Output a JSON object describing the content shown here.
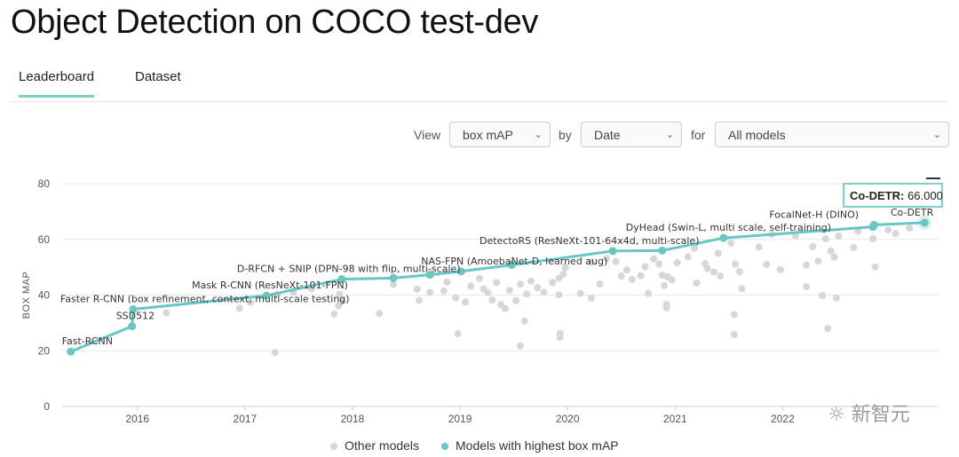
{
  "page": {
    "title": "Object Detection on COCO test-dev"
  },
  "tabs": [
    {
      "label": "Leaderboard",
      "active": true
    },
    {
      "label": "Dataset",
      "active": false
    }
  ],
  "controls": {
    "view_label": "View",
    "metric_value": "box mAP",
    "by_label": "by",
    "by_value": "Date",
    "for_label": "for",
    "models_value": "All models"
  },
  "tooltip": {
    "model": "Co-DETR:",
    "value": "66.000"
  },
  "legend": {
    "other_models": "Other models",
    "best_models": "Models with highest box mAP"
  },
  "watermark": "新智元",
  "colors": {
    "accent": "#66c7c3",
    "other_points": "#d7d7d7",
    "grid": "#e8e8e8"
  },
  "chart_data": {
    "type": "scatter",
    "ylabel": "BOX MAP",
    "xlabel": "",
    "ylim": [
      0,
      80
    ],
    "yticks": [
      0,
      20,
      40,
      60,
      80
    ],
    "xlim": [
      2015.3,
      2023.45
    ],
    "xticks": [
      "2016",
      "2017",
      "2018",
      "2019",
      "2020",
      "2021",
      "2022"
    ],
    "series": [
      {
        "name": "Models with highest box mAP",
        "points": [
          {
            "x": 2015.38,
            "y": 19.7,
            "label": "Fast-RCNN"
          },
          {
            "x": 2015.95,
            "y": 28.8,
            "label": "SSD512"
          },
          {
            "x": 2015.96,
            "y": 34.9,
            "label": "Faster R-CNN (box refinement, context, multi-scale testing)"
          },
          {
            "x": 2017.2,
            "y": 39.8,
            "label": "Mask R-CNN (ResNeXt-101-FPN)"
          },
          {
            "x": 2017.9,
            "y": 45.7,
            "label": "D-RFCN + SNIP (DPN-98 with flip, multi-scale)"
          },
          {
            "x": 2018.38,
            "y": 46.1,
            "label": ""
          },
          {
            "x": 2018.72,
            "y": 47.3,
            "label": ""
          },
          {
            "x": 2019.01,
            "y": 48.5,
            "label": "NAS-FPN (AmoebaNet-D, learned aug)"
          },
          {
            "x": 2019.48,
            "y": 50.8,
            "label": ""
          },
          {
            "x": 2020.42,
            "y": 55.8,
            "label": "DetectoRS (ResNeXt-101-64x4d, multi-scale)"
          },
          {
            "x": 2020.88,
            "y": 56.0,
            "label": ""
          },
          {
            "x": 2021.45,
            "y": 60.5,
            "label": "DyHead (Swin-L, multi scale, self-training)"
          },
          {
            "x": 2022.84,
            "y": 64.5,
            "label": ""
          },
          {
            "x": 2022.85,
            "y": 65.2,
            "label": "FocalNet-H (DINO)"
          },
          {
            "x": 2023.32,
            "y": 66.0,
            "label": "Co-DETR"
          }
        ]
      },
      {
        "name": "Other models",
        "points": [
          {
            "x": 2016.27,
            "y": 33.6
          },
          {
            "x": 2016.95,
            "y": 35.2
          },
          {
            "x": 2017.05,
            "y": 37.4
          },
          {
            "x": 2017.28,
            "y": 19.4
          },
          {
            "x": 2017.3,
            "y": 40.2
          },
          {
            "x": 2017.45,
            "y": 41.0
          },
          {
            "x": 2017.62,
            "y": 42.3
          },
          {
            "x": 2017.83,
            "y": 33.2
          },
          {
            "x": 2017.87,
            "y": 36.1
          },
          {
            "x": 2017.9,
            "y": 37.8
          },
          {
            "x": 2017.88,
            "y": 40.3
          },
          {
            "x": 2018.25,
            "y": 33.4
          },
          {
            "x": 2018.38,
            "y": 43.8
          },
          {
            "x": 2018.6,
            "y": 42.1
          },
          {
            "x": 2018.62,
            "y": 38.1
          },
          {
            "x": 2018.72,
            "y": 40.9
          },
          {
            "x": 2018.85,
            "y": 41.5
          },
          {
            "x": 2018.88,
            "y": 44.7
          },
          {
            "x": 2018.96,
            "y": 39.0
          },
          {
            "x": 2018.98,
            "y": 26.1
          },
          {
            "x": 2019.05,
            "y": 37.5
          },
          {
            "x": 2019.1,
            "y": 43.2
          },
          {
            "x": 2019.18,
            "y": 46.0
          },
          {
            "x": 2019.22,
            "y": 42.1
          },
          {
            "x": 2019.26,
            "y": 40.8
          },
          {
            "x": 2019.3,
            "y": 38.2
          },
          {
            "x": 2019.34,
            "y": 44.5
          },
          {
            "x": 2019.38,
            "y": 36.6
          },
          {
            "x": 2019.42,
            "y": 35.1
          },
          {
            "x": 2019.46,
            "y": 41.7
          },
          {
            "x": 2019.52,
            "y": 38.0
          },
          {
            "x": 2019.56,
            "y": 43.9
          },
          {
            "x": 2019.56,
            "y": 21.7
          },
          {
            "x": 2019.6,
            "y": 30.7
          },
          {
            "x": 2019.62,
            "y": 40.4
          },
          {
            "x": 2019.66,
            "y": 45.0
          },
          {
            "x": 2019.72,
            "y": 42.6
          },
          {
            "x": 2019.78,
            "y": 41.0
          },
          {
            "x": 2019.86,
            "y": 44.5
          },
          {
            "x": 2019.92,
            "y": 46.1
          },
          {
            "x": 2019.92,
            "y": 40.1
          },
          {
            "x": 2019.93,
            "y": 26.2
          },
          {
            "x": 2019.93,
            "y": 24.8
          },
          {
            "x": 2019.96,
            "y": 47.5
          },
          {
            "x": 2019.98,
            "y": 49.9
          },
          {
            "x": 2020.12,
            "y": 40.6
          },
          {
            "x": 2020.22,
            "y": 38.9
          },
          {
            "x": 2020.22,
            "y": 51.8
          },
          {
            "x": 2020.3,
            "y": 44.0
          },
          {
            "x": 2020.36,
            "y": 53.1
          },
          {
            "x": 2020.45,
            "y": 52.0
          },
          {
            "x": 2020.5,
            "y": 46.8
          },
          {
            "x": 2020.55,
            "y": 49.0
          },
          {
            "x": 2020.6,
            "y": 45.6
          },
          {
            "x": 2020.68,
            "y": 47.0
          },
          {
            "x": 2020.72,
            "y": 50.2
          },
          {
            "x": 2020.75,
            "y": 40.6
          },
          {
            "x": 2020.8,
            "y": 53.0
          },
          {
            "x": 2020.85,
            "y": 51.2
          },
          {
            "x": 2020.88,
            "y": 47.1
          },
          {
            "x": 2020.9,
            "y": 43.4
          },
          {
            "x": 2020.92,
            "y": 36.6
          },
          {
            "x": 2020.92,
            "y": 35.4
          },
          {
            "x": 2020.93,
            "y": 46.5
          },
          {
            "x": 2020.97,
            "y": 45.5
          },
          {
            "x": 2021.02,
            "y": 51.6
          },
          {
            "x": 2021.12,
            "y": 53.8
          },
          {
            "x": 2021.18,
            "y": 56.8
          },
          {
            "x": 2021.2,
            "y": 44.3
          },
          {
            "x": 2021.28,
            "y": 51.3
          },
          {
            "x": 2021.3,
            "y": 49.6
          },
          {
            "x": 2021.36,
            "y": 48.3
          },
          {
            "x": 2021.4,
            "y": 55.0
          },
          {
            "x": 2021.42,
            "y": 46.8
          },
          {
            "x": 2021.52,
            "y": 58.6
          },
          {
            "x": 2021.55,
            "y": 33.0
          },
          {
            "x": 2021.55,
            "y": 25.8
          },
          {
            "x": 2021.56,
            "y": 51.1
          },
          {
            "x": 2021.6,
            "y": 48.4
          },
          {
            "x": 2021.62,
            "y": 42.3
          },
          {
            "x": 2021.78,
            "y": 57.2
          },
          {
            "x": 2021.85,
            "y": 51.0
          },
          {
            "x": 2021.9,
            "y": 61.8
          },
          {
            "x": 2021.98,
            "y": 49.1
          },
          {
            "x": 2022.12,
            "y": 61.3
          },
          {
            "x": 2022.22,
            "y": 43.0
          },
          {
            "x": 2022.22,
            "y": 50.8
          },
          {
            "x": 2022.28,
            "y": 57.4
          },
          {
            "x": 2022.33,
            "y": 52.2
          },
          {
            "x": 2022.37,
            "y": 39.8
          },
          {
            "x": 2022.4,
            "y": 60.2
          },
          {
            "x": 2022.42,
            "y": 28.0
          },
          {
            "x": 2022.45,
            "y": 55.8
          },
          {
            "x": 2022.48,
            "y": 53.6
          },
          {
            "x": 2022.5,
            "y": 38.9
          },
          {
            "x": 2022.52,
            "y": 61.2
          },
          {
            "x": 2022.66,
            "y": 57.1
          },
          {
            "x": 2022.7,
            "y": 62.9
          },
          {
            "x": 2022.84,
            "y": 60.3
          },
          {
            "x": 2022.86,
            "y": 50.1
          },
          {
            "x": 2022.98,
            "y": 63.4
          },
          {
            "x": 2023.05,
            "y": 62.1
          },
          {
            "x": 2023.18,
            "y": 64.0
          }
        ]
      }
    ]
  }
}
